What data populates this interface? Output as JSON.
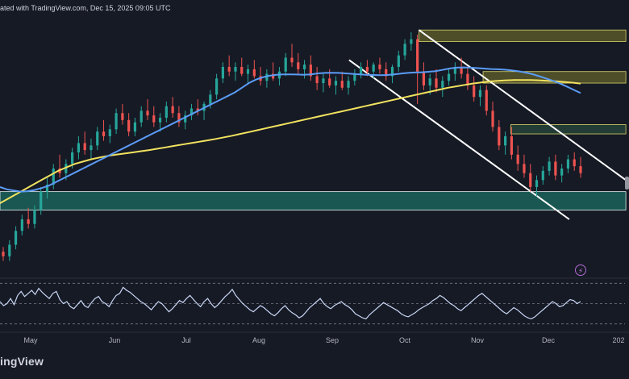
{
  "header": {
    "credit": "ated with TradingView.com, Dec 15, 2025 09:05 UTC"
  },
  "footer": {
    "logo": "ingView"
  },
  "colors": {
    "background": "#161a25",
    "grid": "#2a2e39",
    "candle_up": "#26a69a",
    "candle_down": "#ef5350",
    "ma_blue": "#5b9cf6",
    "ma_yellow": "#f2e25f",
    "zone_yellow": "#7d7a2e",
    "zone_green_light": "#2f5a43",
    "zone_teal": "#1f8a78",
    "channel": "#ffffff",
    "rsi": "#c9d6f5"
  },
  "icons": {
    "alert": "lightning-bolt-icon"
  },
  "chart_data": {
    "type": "candlestick",
    "x_tick_labels": [
      "May",
      "Jun",
      "Jul",
      "Aug",
      "Sep",
      "Oct",
      "Nov",
      "Dec",
      "202"
    ],
    "price": {
      "candles": [
        [
          0.7,
          0.72,
          0.66,
          0.68
        ],
        [
          0.68,
          0.75,
          0.66,
          0.73
        ],
        [
          0.73,
          0.81,
          0.71,
          0.79
        ],
        [
          0.79,
          0.86,
          0.77,
          0.84
        ],
        [
          0.84,
          0.89,
          0.8,
          0.82
        ],
        [
          0.82,
          0.9,
          0.8,
          0.88
        ],
        [
          0.88,
          0.98,
          0.86,
          0.96
        ],
        [
          0.96,
          1.02,
          0.93,
          0.99
        ],
        [
          0.99,
          1.08,
          0.97,
          1.06
        ],
        [
          1.06,
          1.12,
          1.02,
          1.04
        ],
        [
          1.04,
          1.1,
          1.01,
          1.08
        ],
        [
          1.08,
          1.15,
          1.06,
          1.13
        ],
        [
          1.13,
          1.2,
          1.1,
          1.17
        ],
        [
          1.17,
          1.22,
          1.12,
          1.14
        ],
        [
          1.14,
          1.19,
          1.1,
          1.16
        ],
        [
          1.16,
          1.24,
          1.14,
          1.22
        ],
        [
          1.22,
          1.27,
          1.18,
          1.2
        ],
        [
          1.2,
          1.25,
          1.17,
          1.23
        ],
        [
          1.23,
          1.32,
          1.21,
          1.3
        ],
        [
          1.3,
          1.34,
          1.25,
          1.27
        ],
        [
          1.27,
          1.3,
          1.2,
          1.22
        ],
        [
          1.22,
          1.28,
          1.2,
          1.26
        ],
        [
          1.26,
          1.33,
          1.24,
          1.31
        ],
        [
          1.31,
          1.36,
          1.27,
          1.29
        ],
        [
          1.29,
          1.33,
          1.24,
          1.26
        ],
        [
          1.26,
          1.3,
          1.22,
          1.28
        ],
        [
          1.28,
          1.35,
          1.26,
          1.33
        ],
        [
          1.33,
          1.37,
          1.28,
          1.3
        ],
        [
          1.3,
          1.33,
          1.24,
          1.26
        ],
        [
          1.26,
          1.31,
          1.23,
          1.29
        ],
        [
          1.29,
          1.34,
          1.27,
          1.32
        ],
        [
          1.32,
          1.36,
          1.29,
          1.31
        ],
        [
          1.31,
          1.35,
          1.27,
          1.34
        ],
        [
          1.34,
          1.4,
          1.32,
          1.38
        ],
        [
          1.38,
          1.47,
          1.36,
          1.45
        ],
        [
          1.45,
          1.52,
          1.43,
          1.5
        ],
        [
          1.5,
          1.55,
          1.46,
          1.48
        ],
        [
          1.48,
          1.52,
          1.44,
          1.5
        ],
        [
          1.5,
          1.54,
          1.46,
          1.47
        ],
        [
          1.47,
          1.51,
          1.43,
          1.49
        ],
        [
          1.49,
          1.53,
          1.45,
          1.46
        ],
        [
          1.46,
          1.5,
          1.42,
          1.44
        ],
        [
          1.44,
          1.49,
          1.41,
          1.47
        ],
        [
          1.47,
          1.52,
          1.44,
          1.45
        ],
        [
          1.45,
          1.5,
          1.42,
          1.48
        ],
        [
          1.48,
          1.56,
          1.46,
          1.54
        ],
        [
          1.54,
          1.6,
          1.5,
          1.52
        ],
        [
          1.52,
          1.56,
          1.47,
          1.49
        ],
        [
          1.49,
          1.53,
          1.45,
          1.51
        ],
        [
          1.51,
          1.55,
          1.44,
          1.46
        ],
        [
          1.46,
          1.5,
          1.4,
          1.43
        ],
        [
          1.43,
          1.47,
          1.39,
          1.45
        ],
        [
          1.45,
          1.49,
          1.41,
          1.42
        ],
        [
          1.42,
          1.46,
          1.38,
          1.44
        ],
        [
          1.44,
          1.48,
          1.4,
          1.41
        ],
        [
          1.41,
          1.46,
          1.38,
          1.44
        ],
        [
          1.44,
          1.49,
          1.42,
          1.47
        ],
        [
          1.47,
          1.52,
          1.45,
          1.5
        ],
        [
          1.5,
          1.53,
          1.46,
          1.48
        ],
        [
          1.48,
          1.52,
          1.45,
          1.51
        ],
        [
          1.51,
          1.54,
          1.47,
          1.49
        ],
        [
          1.49,
          1.52,
          1.44,
          1.46
        ],
        [
          1.46,
          1.51,
          1.43,
          1.5
        ],
        [
          1.5,
          1.57,
          1.48,
          1.55
        ],
        [
          1.55,
          1.62,
          1.53,
          1.6
        ],
        [
          1.6,
          1.65,
          1.57,
          1.62
        ],
        [
          1.62,
          1.64,
          1.34,
          1.48
        ],
        [
          1.48,
          1.52,
          1.4,
          1.42
        ],
        [
          1.42,
          1.47,
          1.38,
          1.45
        ],
        [
          1.45,
          1.49,
          1.39,
          1.41
        ],
        [
          1.41,
          1.46,
          1.37,
          1.44
        ],
        [
          1.44,
          1.49,
          1.42,
          1.47
        ],
        [
          1.47,
          1.52,
          1.44,
          1.5
        ],
        [
          1.5,
          1.54,
          1.45,
          1.47
        ],
        [
          1.47,
          1.5,
          1.4,
          1.42
        ],
        [
          1.42,
          1.46,
          1.35,
          1.37
        ],
        [
          1.37,
          1.42,
          1.33,
          1.4
        ],
        [
          1.4,
          1.42,
          1.29,
          1.31
        ],
        [
          1.31,
          1.35,
          1.22,
          1.24
        ],
        [
          1.24,
          1.27,
          1.14,
          1.16
        ],
        [
          1.16,
          1.22,
          1.12,
          1.2
        ],
        [
          1.2,
          1.24,
          1.1,
          1.12
        ],
        [
          1.12,
          1.16,
          1.05,
          1.08
        ],
        [
          1.08,
          1.12,
          1.02,
          1.04
        ],
        [
          1.04,
          1.08,
          0.96,
          0.98
        ],
        [
          0.98,
          1.03,
          0.94,
          1.01
        ],
        [
          1.01,
          1.07,
          0.99,
          1.05
        ],
        [
          1.05,
          1.11,
          1.03,
          1.09
        ],
        [
          1.09,
          1.12,
          1.01,
          1.03
        ],
        [
          1.03,
          1.08,
          1.0,
          1.06
        ],
        [
          1.06,
          1.12,
          1.04,
          1.1
        ],
        [
          1.1,
          1.13,
          1.05,
          1.07
        ],
        [
          1.07,
          1.11,
          1.02,
          1.04
        ]
      ],
      "ma_blue": [
        0.98,
        0.97,
        0.965,
        0.96,
        0.962,
        0.967,
        0.975,
        0.985,
        1.0,
        1.015,
        1.03,
        1.045,
        1.06,
        1.075,
        1.09,
        1.105,
        1.12,
        1.135,
        1.15,
        1.165,
        1.18,
        1.195,
        1.21,
        1.225,
        1.24,
        1.255,
        1.27,
        1.285,
        1.3,
        1.315,
        1.33,
        1.345,
        1.36,
        1.375,
        1.39,
        1.41,
        1.43,
        1.445,
        1.455,
        1.462,
        1.466,
        1.468,
        1.468,
        1.467,
        1.466,
        1.468,
        1.472,
        1.474,
        1.475,
        1.474,
        1.472,
        1.47,
        1.468,
        1.466,
        1.465,
        1.464,
        1.465,
        1.468,
        1.471,
        1.474,
        1.476,
        1.477,
        1.479,
        1.482,
        1.487,
        1.493,
        1.497,
        1.498,
        1.497,
        1.495,
        1.493,
        1.491,
        1.49,
        1.488,
        1.485,
        1.481,
        1.476,
        1.469,
        1.46,
        1.45,
        1.44,
        1.428,
        1.415,
        1.401,
        1.387
      ],
      "ma_yellow": [
        0.91,
        0.93,
        0.95,
        0.97,
        0.99,
        1.01,
        1.03,
        1.05,
        1.065,
        1.08,
        1.09,
        1.1,
        1.108,
        1.115,
        1.12,
        1.125,
        1.13,
        1.135,
        1.14,
        1.146,
        1.152,
        1.158,
        1.164,
        1.17,
        1.176,
        1.182,
        1.188,
        1.195,
        1.202,
        1.21,
        1.218,
        1.226,
        1.234,
        1.242,
        1.25,
        1.258,
        1.266,
        1.274,
        1.282,
        1.29,
        1.298,
        1.306,
        1.314,
        1.322,
        1.33,
        1.338,
        1.346,
        1.354,
        1.362,
        1.37,
        1.378,
        1.386,
        1.394,
        1.402,
        1.41,
        1.416,
        1.422,
        1.428,
        1.433,
        1.437,
        1.44,
        1.442,
        1.443,
        1.443,
        1.443,
        1.442,
        1.44,
        1.438,
        1.435,
        1.432,
        1.428
      ],
      "zones": [
        {
          "name": "upper-supply-zone",
          "color": "zone_yellow",
          "from": 0.6,
          "to": 0.83,
          "x_from": 0.666,
          "x_to": 0.995,
          "p_low": 1.61,
          "p_high": 1.66
        },
        {
          "name": "mid-supply-zone",
          "color": "zone_yellow",
          "from": 0.73,
          "to": 0.83,
          "x_from": 0.768,
          "x_to": 0.995,
          "p_low": 1.43,
          "p_high": 1.48
        },
        {
          "name": "resistance-zone",
          "color": "zone_green_light",
          "from": 0.8,
          "to": 0.83,
          "x_from": 0.812,
          "x_to": 0.995,
          "p_low": 1.21,
          "p_high": 1.25
        },
        {
          "name": "demand-zone",
          "color": "zone_teal",
          "from": 0.0,
          "to": 0.83,
          "x_from": 0.0,
          "x_to": 0.995,
          "p_low": 0.88,
          "p_high": 0.96
        }
      ],
      "channel": [
        {
          "name": "channel-upper-line",
          "start": [
            0.666,
            1.66
          ],
          "end": [
            0.995,
            1.01
          ]
        },
        {
          "name": "channel-lower-line",
          "start": [
            0.555,
            1.53
          ],
          "end": [
            0.905,
            0.84
          ]
        }
      ]
    },
    "rsi": [
      52,
      48,
      50,
      55,
      49,
      58,
      62,
      57,
      60,
      63,
      59,
      65,
      61,
      58,
      55,
      60,
      62,
      54,
      50,
      52,
      47,
      45,
      49,
      53,
      48,
      46,
      51,
      55,
      57,
      52,
      50,
      47,
      53,
      58,
      60,
      66,
      63,
      61,
      58,
      55,
      52,
      50,
      47,
      44,
      48,
      52,
      50,
      46,
      42,
      45,
      49,
      53,
      51,
      55,
      58,
      54,
      50,
      47,
      52,
      55,
      50,
      46,
      49,
      53,
      57,
      60,
      64,
      58,
      54,
      50,
      47,
      44,
      42,
      45,
      48,
      46,
      43,
      40,
      38,
      41,
      45,
      48,
      44,
      41,
      39,
      36,
      38,
      42,
      46,
      49,
      52,
      55,
      50,
      47,
      45,
      48,
      50,
      52,
      49,
      47,
      44,
      40,
      38,
      36,
      35,
      39,
      42,
      45,
      48,
      51,
      49,
      47,
      45,
      43,
      40,
      38,
      37,
      39,
      41,
      44,
      46,
      48,
      50,
      53,
      55,
      58,
      56,
      53,
      50,
      48,
      45,
      43,
      46,
      49,
      52,
      55,
      58,
      60,
      57,
      54,
      51,
      48,
      45,
      42,
      40,
      43,
      46,
      44,
      41,
      38,
      36,
      35,
      37,
      40,
      43,
      46,
      49,
      52,
      50,
      47,
      48,
      51,
      54,
      53,
      50,
      52
    ],
    "rsi_range": [
      25,
      75
    ],
    "grid": false
  }
}
